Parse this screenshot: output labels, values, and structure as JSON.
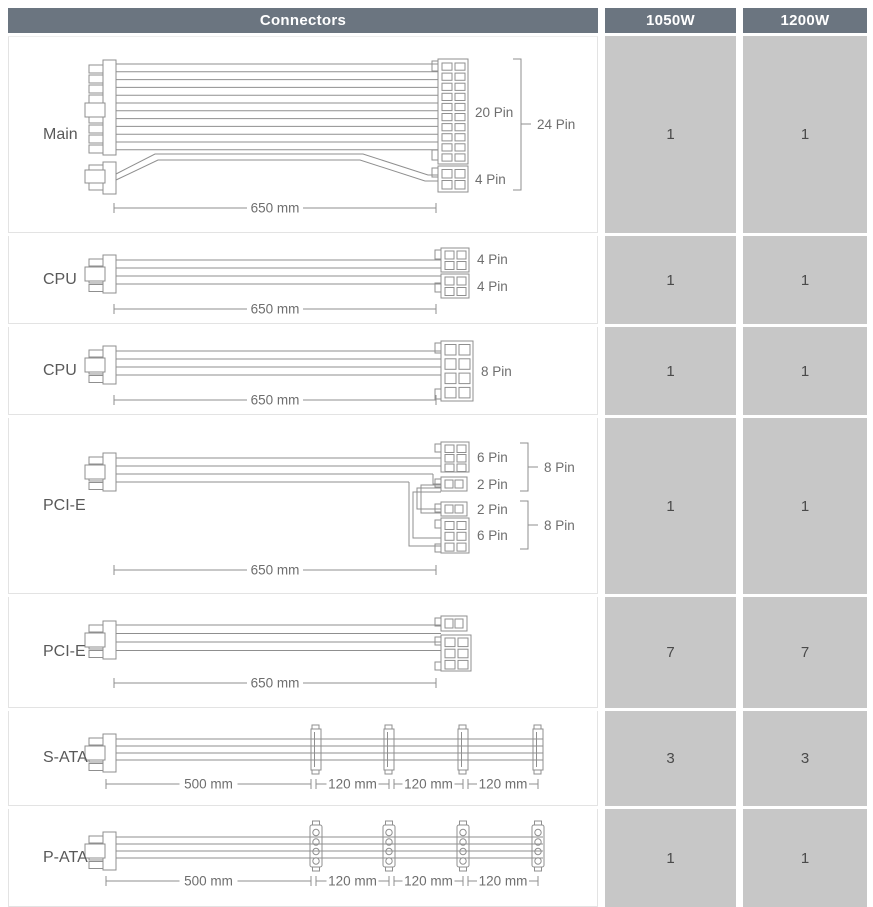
{
  "header": {
    "connectors": "Connectors",
    "watt1": "1050W",
    "watt2": "1200W"
  },
  "rows": [
    {
      "id": "main",
      "label": "Main",
      "values": [
        "1",
        "1"
      ],
      "pins": {
        "p20": "20 Pin",
        "p4": "4 Pin",
        "p24": "24 Pin"
      },
      "dims": {
        "d1": "650 mm"
      }
    },
    {
      "id": "cpu-4plus4",
      "label": "CPU",
      "values": [
        "1",
        "1"
      ],
      "pins": {
        "top": "4 Pin",
        "bottom": "4 Pin"
      },
      "dims": {
        "d1": "650 mm"
      }
    },
    {
      "id": "cpu-8",
      "label": "CPU",
      "values": [
        "1",
        "1"
      ],
      "pins": {
        "p8": "8 Pin"
      },
      "dims": {
        "d1": "650 mm"
      }
    },
    {
      "id": "pcie-dual-6plus2",
      "label": "PCI-E",
      "values": [
        "1",
        "1"
      ],
      "pins": {
        "g1_6": "6 Pin",
        "g1_2": "2 Pin",
        "g1_8": "8 Pin",
        "g2_2": "2 Pin",
        "g2_6": "6 Pin",
        "g2_8": "8 Pin"
      },
      "dims": {
        "d1": "650 mm"
      }
    },
    {
      "id": "pcie-6plus2",
      "label": "PCI-E",
      "values": [
        "7",
        "7"
      ],
      "pins": {},
      "dims": {
        "d1": "650 mm"
      }
    },
    {
      "id": "sata",
      "label": "S-ATA",
      "values": [
        "3",
        "3"
      ],
      "pins": {},
      "dims": {
        "d1": "500 mm",
        "d2": "120 mm",
        "d3": "120 mm",
        "d4": "120 mm"
      }
    },
    {
      "id": "pata",
      "label": "P-ATA",
      "values": [
        "1",
        "1"
      ],
      "pins": {},
      "dims": {
        "d1": "500 mm",
        "d2": "120 mm",
        "d3": "120 mm",
        "d4": "120 mm"
      }
    }
  ],
  "colors": {
    "header_bg": "#6b7580",
    "header_text": "#ffffff",
    "value_cell_bg": "#c7c7c7",
    "value_text": "#4a4a4a",
    "diagram_line": "#8f8f8f",
    "diagram_text": "#6e6e6e",
    "row_separator": "#e3e3e3"
  }
}
